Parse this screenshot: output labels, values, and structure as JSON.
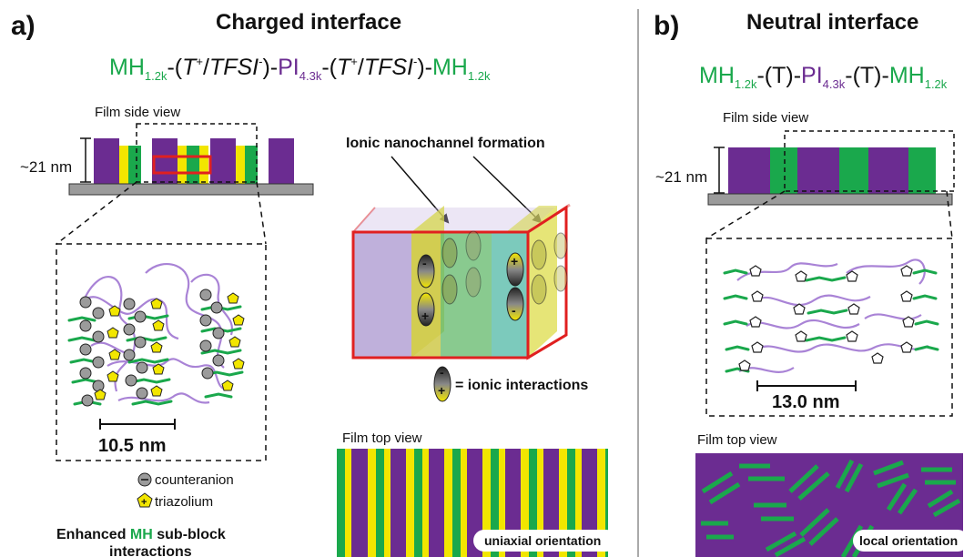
{
  "panel_a": {
    "label": "a)",
    "title": "Charged interface",
    "formula": {
      "mh": "MH",
      "mh_sub": "1.2k",
      "linker_open": "-(",
      "t": "T",
      "t_sup": "+",
      "slash": "/",
      "tfsi": "TFSI",
      "tfsi_sup": "-",
      "linker_close": ")-",
      "pi": "PI",
      "pi_sub": "4.3k",
      "linker_close2": ")-"
    },
    "film_side_view": "Film side view",
    "thickness": "~21 nm",
    "nanochannel_label": "Ionic nanochannel formation",
    "ionic_interactions": "= ionic interactions",
    "scale": "10.5 nm",
    "legend": {
      "counteranion": "counteranion",
      "triazolium": "triazolium"
    },
    "caption_part1": "Enhanced ",
    "caption_mh": "MH",
    "caption_part2": " sub-block",
    "caption_line2": "interactions",
    "film_top_view": "Film top view",
    "orientation": "uniaxial orientation"
  },
  "panel_b": {
    "label": "b)",
    "title": "Neutral interface",
    "formula": {
      "mh": "MH",
      "mh_sub": "1.2k",
      "t_part": "-(T)-",
      "pi": "PI",
      "pi_sub": "4.3k"
    },
    "film_side_view": "Film side view",
    "thickness": "~21 nm",
    "scale": "13.0 nm",
    "film_top_view": "Film top view",
    "orientation": "local orientation"
  },
  "colors": {
    "green": "#1aa84c",
    "purple": "#6b2c91",
    "yellow": "#f2e600",
    "red": "#e02020",
    "gray": "#9b9b9b",
    "light_purple": "#a983d6"
  }
}
